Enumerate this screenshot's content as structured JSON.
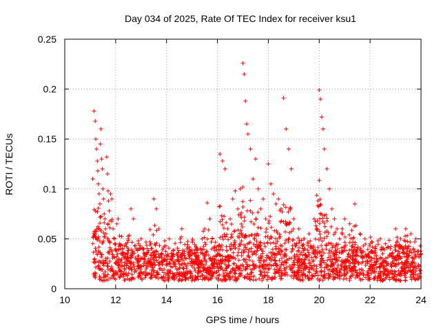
{
  "chart_data": {
    "type": "scatter",
    "title": "Day 034 of 2025, Rate Of TEC Index for receiver ksu1",
    "xlabel": "GPS time / hours",
    "ylabel": "ROTI / TECUs",
    "xlim": [
      10,
      24
    ],
    "ylim": [
      0,
      0.25
    ],
    "xticks": [
      "10",
      "12",
      "14",
      "16",
      "18",
      "20",
      "22",
      "24"
    ],
    "yticks": [
      "0",
      "0.05",
      "0.1",
      "0.15",
      "0.2",
      "0.25"
    ],
    "grid": true,
    "marker": "+",
    "color": "#ff0000",
    "series": [
      {
        "x": [
          11.1,
          11.15,
          11.2,
          11.22,
          11.25,
          11.28,
          11.3,
          11.32,
          11.35,
          11.38,
          11.4,
          11.42,
          11.45,
          11.48,
          11.5,
          11.52,
          11.55,
          11.58,
          11.6,
          11.62,
          11.65,
          11.68,
          11.7,
          11.72,
          11.75,
          11.78,
          11.8,
          11.85,
          11.9,
          11.95,
          12.0,
          12.05,
          12.1,
          12.15,
          12.2,
          12.3,
          12.4,
          12.5,
          12.6,
          12.7,
          12.8,
          12.9,
          13.0,
          13.1,
          13.2,
          13.3,
          13.4,
          13.5,
          13.6,
          13.7,
          13.8,
          13.9,
          14.0,
          14.2,
          14.4,
          14.6,
          14.8,
          15.0,
          15.2,
          15.4,
          15.5,
          15.6,
          15.7,
          15.8,
          16.0,
          16.1,
          16.2,
          16.3,
          16.4,
          16.5,
          16.6,
          16.7,
          16.8,
          16.9,
          17.0,
          17.05,
          17.1,
          17.15,
          17.2,
          17.3,
          17.4,
          17.5,
          17.6,
          17.7,
          17.8,
          17.9,
          18.0,
          18.1,
          18.2,
          18.3,
          18.4,
          18.5,
          18.6,
          18.7,
          18.8,
          18.9,
          19.0,
          19.2,
          19.4,
          19.6,
          19.8,
          20.0,
          20.05,
          20.1,
          20.15,
          20.2,
          20.3,
          20.4,
          20.5,
          20.6,
          20.7,
          20.8,
          20.9,
          21.0,
          21.2,
          21.4,
          21.6,
          21.8,
          22.0,
          22.2,
          22.4,
          22.6,
          22.8,
          23.0,
          23.2,
          23.4,
          23.6,
          23.8,
          24.0
        ],
        "y": [
          0.11,
          0.178,
          0.168,
          0.15,
          0.14,
          0.128,
          0.118,
          0.105,
          0.095,
          0.085,
          0.145,
          0.16,
          0.13,
          0.12,
          0.1,
          0.09,
          0.075,
          0.07,
          0.06,
          0.055,
          0.132,
          0.115,
          0.098,
          0.088,
          0.078,
          0.068,
          0.095,
          0.09,
          0.06,
          0.05,
          0.04,
          0.065,
          0.07,
          0.045,
          0.04,
          0.035,
          0.045,
          0.05,
          0.08,
          0.07,
          0.04,
          0.045,
          0.05,
          0.04,
          0.035,
          0.03,
          0.04,
          0.09,
          0.08,
          0.06,
          0.035,
          0.03,
          0.025,
          0.03,
          0.035,
          0.06,
          0.04,
          0.035,
          0.04,
          0.05,
          0.06,
          0.086,
          0.07,
          0.05,
          0.035,
          0.135,
          0.128,
          0.12,
          0.06,
          0.07,
          0.09,
          0.098,
          0.08,
          0.1,
          0.226,
          0.215,
          0.188,
          0.165,
          0.155,
          0.14,
          0.11,
          0.13,
          0.1,
          0.08,
          0.09,
          0.07,
          0.125,
          0.105,
          0.095,
          0.085,
          0.09,
          0.08,
          0.191,
          0.16,
          0.14,
          0.12,
          0.07,
          0.06,
          0.05,
          0.055,
          0.07,
          0.199,
          0.19,
          0.172,
          0.16,
          0.14,
          0.12,
          0.1,
          0.08,
          0.07,
          0.06,
          0.05,
          0.06,
          0.07,
          0.065,
          0.085,
          0.055,
          0.05,
          0.045,
          0.04,
          0.05,
          0.045,
          0.04,
          0.06,
          0.05,
          0.06,
          0.055,
          0.05,
          0.035
        ]
      }
    ]
  }
}
